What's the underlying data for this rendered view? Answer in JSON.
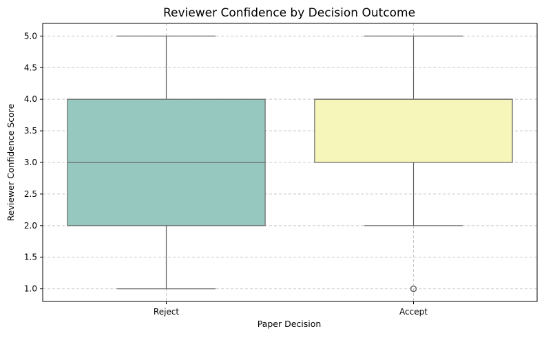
{
  "chart_data": {
    "type": "box",
    "title": "Reviewer Confidence by Decision Outcome",
    "xlabel": "Paper Decision",
    "ylabel": "Reviewer Confidence Score",
    "ylim": [
      0.8,
      5.2
    ],
    "yticks": [
      1.0,
      1.5,
      2.0,
      2.5,
      3.0,
      3.5,
      4.0,
      4.5,
      5.0
    ],
    "ytick_labels": [
      "1.0",
      "1.5",
      "2.0",
      "2.5",
      "3.0",
      "3.5",
      "4.0",
      "4.5",
      "5.0"
    ],
    "grid": true,
    "categories": [
      "Reject",
      "Accept"
    ],
    "boxes": [
      {
        "category": "Reject",
        "whisker_low": 1.0,
        "q1": 2.0,
        "median": 3.0,
        "q3": 4.0,
        "whisker_high": 5.0,
        "outliers": [],
        "color": "#96c8c0"
      },
      {
        "category": "Accept",
        "whisker_low": 2.0,
        "q1": 3.0,
        "median": 4.0,
        "q3": 4.0,
        "whisker_high": 5.0,
        "outliers": [
          1.0
        ],
        "color": "#f6f6ba"
      }
    ],
    "line_color": "#666666",
    "grid_color": "#c8c8c8"
  }
}
